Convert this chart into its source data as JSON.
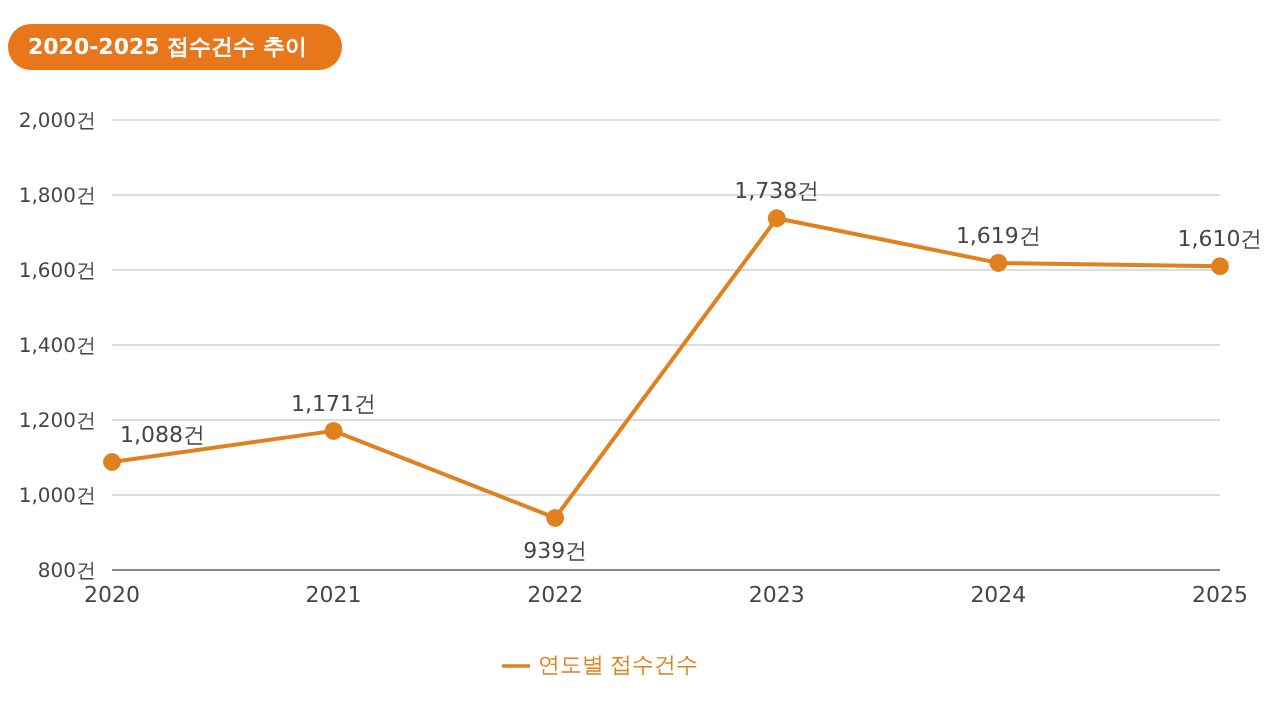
{
  "chart_data": {
    "type": "line",
    "title": "2020-2025 접수건수 추이",
    "categories": [
      "2020",
      "2021",
      "2022",
      "2023",
      "2024",
      "2025"
    ],
    "series": [
      {
        "name": "연도별 접수건수",
        "color": "#e0801f",
        "values": [
          1088,
          1171,
          939,
          1738,
          1619,
          1610
        ],
        "value_labels": [
          "1,088건",
          "1,171건",
          "939건",
          "1,738건",
          "1,619건",
          "1,610건"
        ]
      }
    ],
    "ylim": [
      800,
      2000
    ],
    "yticks": [
      {
        "value": 800,
        "label": "800건"
      },
      {
        "value": 1000,
        "label": "1,000건"
      },
      {
        "value": 1200,
        "label": "1,200건"
      },
      {
        "value": 1400,
        "label": "1,400건"
      },
      {
        "value": 1600,
        "label": "1,600건"
      },
      {
        "value": 1800,
        "label": "1,800건"
      },
      {
        "value": 2000,
        "label": "2,000건"
      }
    ],
    "grid": "y",
    "legend": "bottom",
    "marker": "circle",
    "line_style": "solid"
  }
}
